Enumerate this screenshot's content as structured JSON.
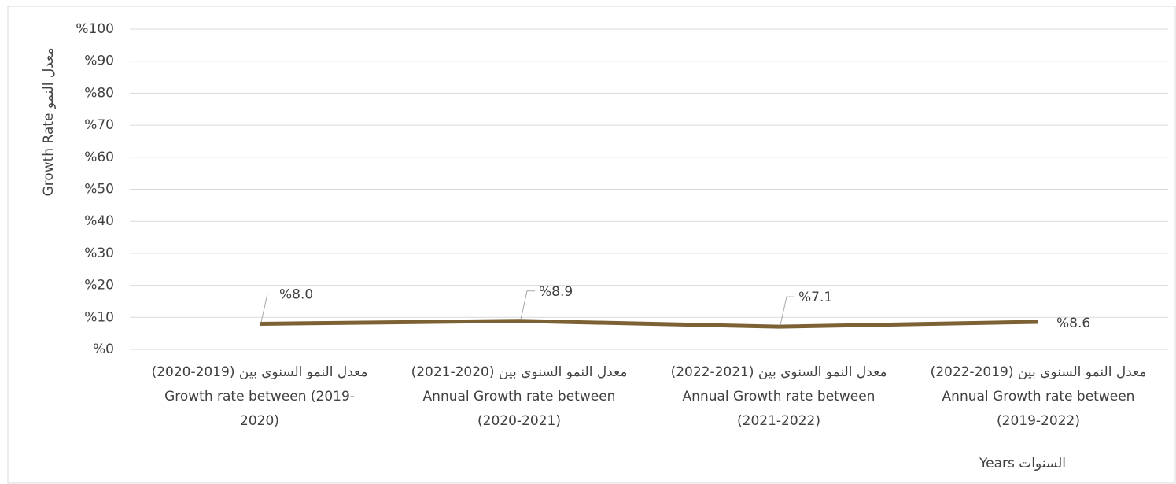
{
  "chart_data": {
    "type": "line",
    "y_label": "Growth Rate معدل النمو",
    "x_label": "Years السنوات",
    "categories": [
      [
        "معدل النمو  السنوي بين (2019-2020)",
        "Growth rate between (2019-",
        "2020)"
      ],
      [
        "معدل النمو  السنوي بين (2020-2021)",
        "Annual Growth rate between",
        "(2020-2021)"
      ],
      [
        "معدل النمو  السنوي بين (2021-2022)",
        "Annual Growth rate between",
        "(2021-2022)"
      ],
      [
        "معدل النمو  السنوي بين (2019-2022)",
        "Annual Growth rate between",
        "(2019-2022)"
      ]
    ],
    "series": [
      {
        "name": "Growth Rate",
        "color": "#7b6134",
        "values": [
          8.0,
          8.9,
          7.1,
          8.6
        ],
        "value_labels": [
          "%8.0",
          "%8.9",
          "%7.1",
          "%8.6"
        ]
      }
    ],
    "ylim": [
      0,
      100
    ],
    "yticks": [
      {
        "value": 0,
        "label": "%0"
      },
      {
        "value": 10,
        "label": "%10"
      },
      {
        "value": 20,
        "label": "%20"
      },
      {
        "value": 30,
        "label": "%30"
      },
      {
        "value": 40,
        "label": "%40"
      },
      {
        "value": 50,
        "label": "%50"
      },
      {
        "value": 60,
        "label": "%60"
      },
      {
        "value": 70,
        "label": "%70"
      },
      {
        "value": 80,
        "label": "%80"
      },
      {
        "value": 90,
        "label": "%90"
      },
      {
        "value": 100,
        "label": "%100"
      }
    ],
    "grid": true
  }
}
